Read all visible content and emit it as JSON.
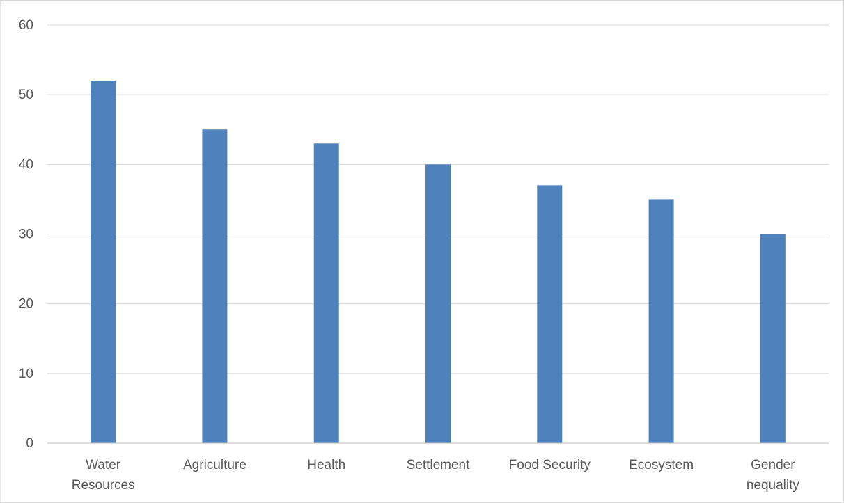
{
  "chart_data": {
    "type": "bar",
    "categories": [
      "Water Resources",
      "Agriculture",
      "Health",
      "Settlement",
      "Food Security",
      "Ecosystem",
      "Gender nequality"
    ],
    "category_lines": [
      [
        "Water",
        "Resources"
      ],
      [
        "Agriculture"
      ],
      [
        "Health"
      ],
      [
        "Settlement"
      ],
      [
        "Food Security"
      ],
      [
        "Ecosystem"
      ],
      [
        "Gender",
        "nequality"
      ]
    ],
    "values": [
      52,
      45,
      43,
      40,
      37,
      35,
      30
    ],
    "ylim": [
      0,
      60
    ],
    "yticks": [
      "0",
      "10",
      "20",
      "30",
      "40",
      "50",
      "60"
    ],
    "title": "",
    "xlabel": "",
    "ylabel": "",
    "grid": true,
    "legend": "none",
    "colors": {
      "bar": "#4f81bd",
      "grid": "#d9d9d9",
      "axis": "#bfbfbf",
      "text": "#595959"
    }
  }
}
